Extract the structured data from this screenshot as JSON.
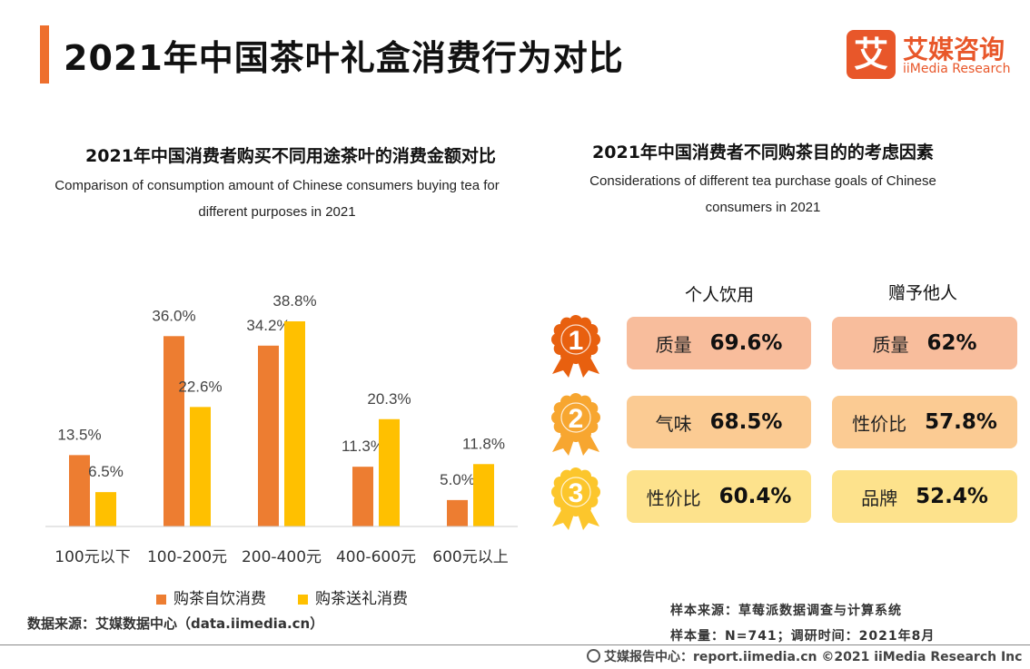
{
  "header": {
    "title": "2021年中国茶叶礼盒消费行为对比",
    "logo_mark": "艾",
    "logo_cn": "艾媒咨询",
    "logo_en": "iiMedia Research"
  },
  "chart_data": {
    "type": "bar",
    "title": "2021年中国消费者购买不同用途茶叶的消费金额对比",
    "subtitle": "Comparison of consumption amount of Chinese consumers buying tea for different purposes in 2021",
    "categories": [
      "100元以下",
      "100-200元",
      "200-400元",
      "400-600元",
      "600元以上"
    ],
    "series": [
      {
        "name": "购茶自饮消费",
        "values": [
          13.5,
          36.0,
          34.2,
          11.3,
          5.0
        ],
        "labels": [
          "13.5%",
          "36.0%",
          "34.2%",
          "11.3%",
          "5.0%"
        ],
        "color": "#ed7d31"
      },
      {
        "name": "购茶送礼消费",
        "values": [
          6.5,
          22.6,
          38.8,
          20.3,
          11.8
        ],
        "labels": [
          "6.5%",
          "22.6%",
          "38.8%",
          "20.3%",
          "11.8%"
        ],
        "color": "#ffc000"
      }
    ],
    "ylim": [
      0,
      40
    ],
    "xlabel": "",
    "ylabel": "",
    "grid": false,
    "legend": "bottom"
  },
  "left_panel": {
    "subtitle_line1": "Comparison of consumption amount of Chinese consumers buying tea for",
    "subtitle_line2": "different purposes in 2021",
    "source": "数据来源：艾媒数据中心（data.iimedia.cn）"
  },
  "right_panel": {
    "title": "2021年中国消费者不同购茶目的的考虑因素",
    "subtitle_line1": "Considerations of different tea purchase goals of Chinese",
    "subtitle_line2": "consumers in 2021",
    "col_personal": "个人饮用",
    "col_gift": "赠予他人",
    "ranks": [
      {
        "rank": "1",
        "personal_label": "质量",
        "personal_value": "69.6%",
        "gift_label": "质量",
        "gift_value": "62%",
        "badge_color": "#e8600f",
        "card_color": "#f8bd9c"
      },
      {
        "rank": "2",
        "personal_label": "气味",
        "personal_value": "68.5%",
        "gift_label": "性价比",
        "gift_value": "57.8%",
        "badge_color": "#f7a630",
        "card_color": "#fbcb93"
      },
      {
        "rank": "3",
        "personal_label": "性价比",
        "personal_value": "60.4%",
        "gift_label": "品牌",
        "gift_value": "52.4%",
        "badge_color": "#fcc62c",
        "card_color": "#fde28c"
      }
    ]
  },
  "footer": {
    "sample_source": "样本来源：草莓派数据调查与计算系统",
    "sample_size": "样本量：N=741；调研时间：2021年8月",
    "credit": "艾媒报告中心：report.iimedia.cn  ©2021  iiMedia Research  Inc"
  }
}
